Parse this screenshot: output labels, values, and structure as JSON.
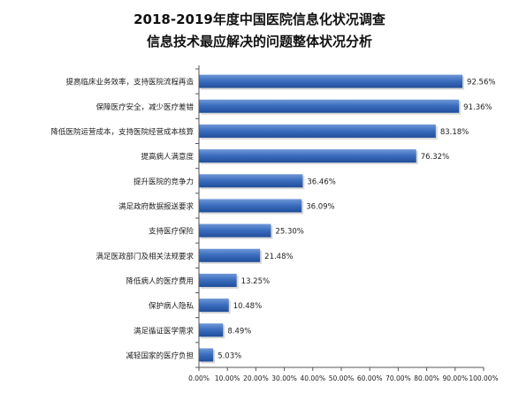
{
  "title": "2018-2019年度中国医院信息化状况调查",
  "subtitle": "信息技术最应解决的问题整体状况分析",
  "colors": {
    "bar_top": "#6f98d6",
    "bar_mid": "#3d6fc0",
    "bar_bottom": "#1f4e9a",
    "axis": "#555555",
    "text": "#222222"
  },
  "chart_data": {
    "type": "bar",
    "orientation": "horizontal",
    "title": "2018-2019年度中国医院信息化状况调查",
    "subtitle": "信息技术最应解决的问题整体状况分析",
    "categories": [
      "提高临床业务效率，支持医院流程再造",
      "保障医疗安全，减少医疗差错",
      "降低医院运营成本，支持医院经营成本核算",
      "提高病人满意度",
      "提升医院的竞争力",
      "满足政府数据报送要求",
      "支持医疗保险",
      "满足医政部门及相关法规要求",
      "降低病人的医疗费用",
      "保护病人隐私",
      "满足循证医学需求",
      "减轻国家的医疗负担"
    ],
    "values": [
      92.56,
      91.36,
      83.18,
      76.32,
      36.46,
      36.09,
      25.3,
      21.48,
      13.25,
      10.48,
      8.49,
      5.03
    ],
    "value_labels": [
      "92.56%",
      "91.36%",
      "83.18%",
      "76.32%",
      "36.46%",
      "36.09%",
      "25.30%",
      "21.48%",
      "13.25%",
      "10.48%",
      "8.49%",
      "5.03%"
    ],
    "xlim": [
      0,
      100
    ],
    "xticks": [
      "0.00%",
      "10.00%",
      "20.00%",
      "30.00%",
      "40.00%",
      "50.00%",
      "60.00%",
      "70.00%",
      "80.00%",
      "90.00%",
      "100.00%"
    ],
    "grid": false,
    "legend": "none"
  }
}
